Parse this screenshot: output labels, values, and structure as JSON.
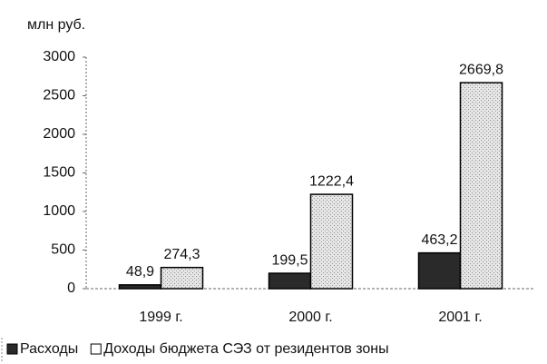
{
  "chart_data": {
    "type": "bar",
    "y_axis_label": "млн руб.",
    "categories": [
      "1999 г.",
      "2000 г.",
      "2001 г."
    ],
    "series": [
      {
        "name": "Расходы",
        "color": "#2a2a2a",
        "values": [
          48.9,
          199.5,
          463.2
        ],
        "value_labels": [
          "48,9",
          "199,5",
          "463,2"
        ]
      },
      {
        "name": "Доходы бюджета СЭЗ от резидентов зоны",
        "color": "#d4d4d4",
        "values": [
          274.3,
          1222.4,
          2669.8
        ],
        "value_labels": [
          "274,3",
          "1222,4",
          "2669,8"
        ]
      }
    ],
    "ylim": [
      0,
      3000
    ],
    "yticks": [
      0,
      500,
      1000,
      1500,
      2000,
      2500,
      3000
    ],
    "grid": false,
    "legend": "bottom"
  }
}
